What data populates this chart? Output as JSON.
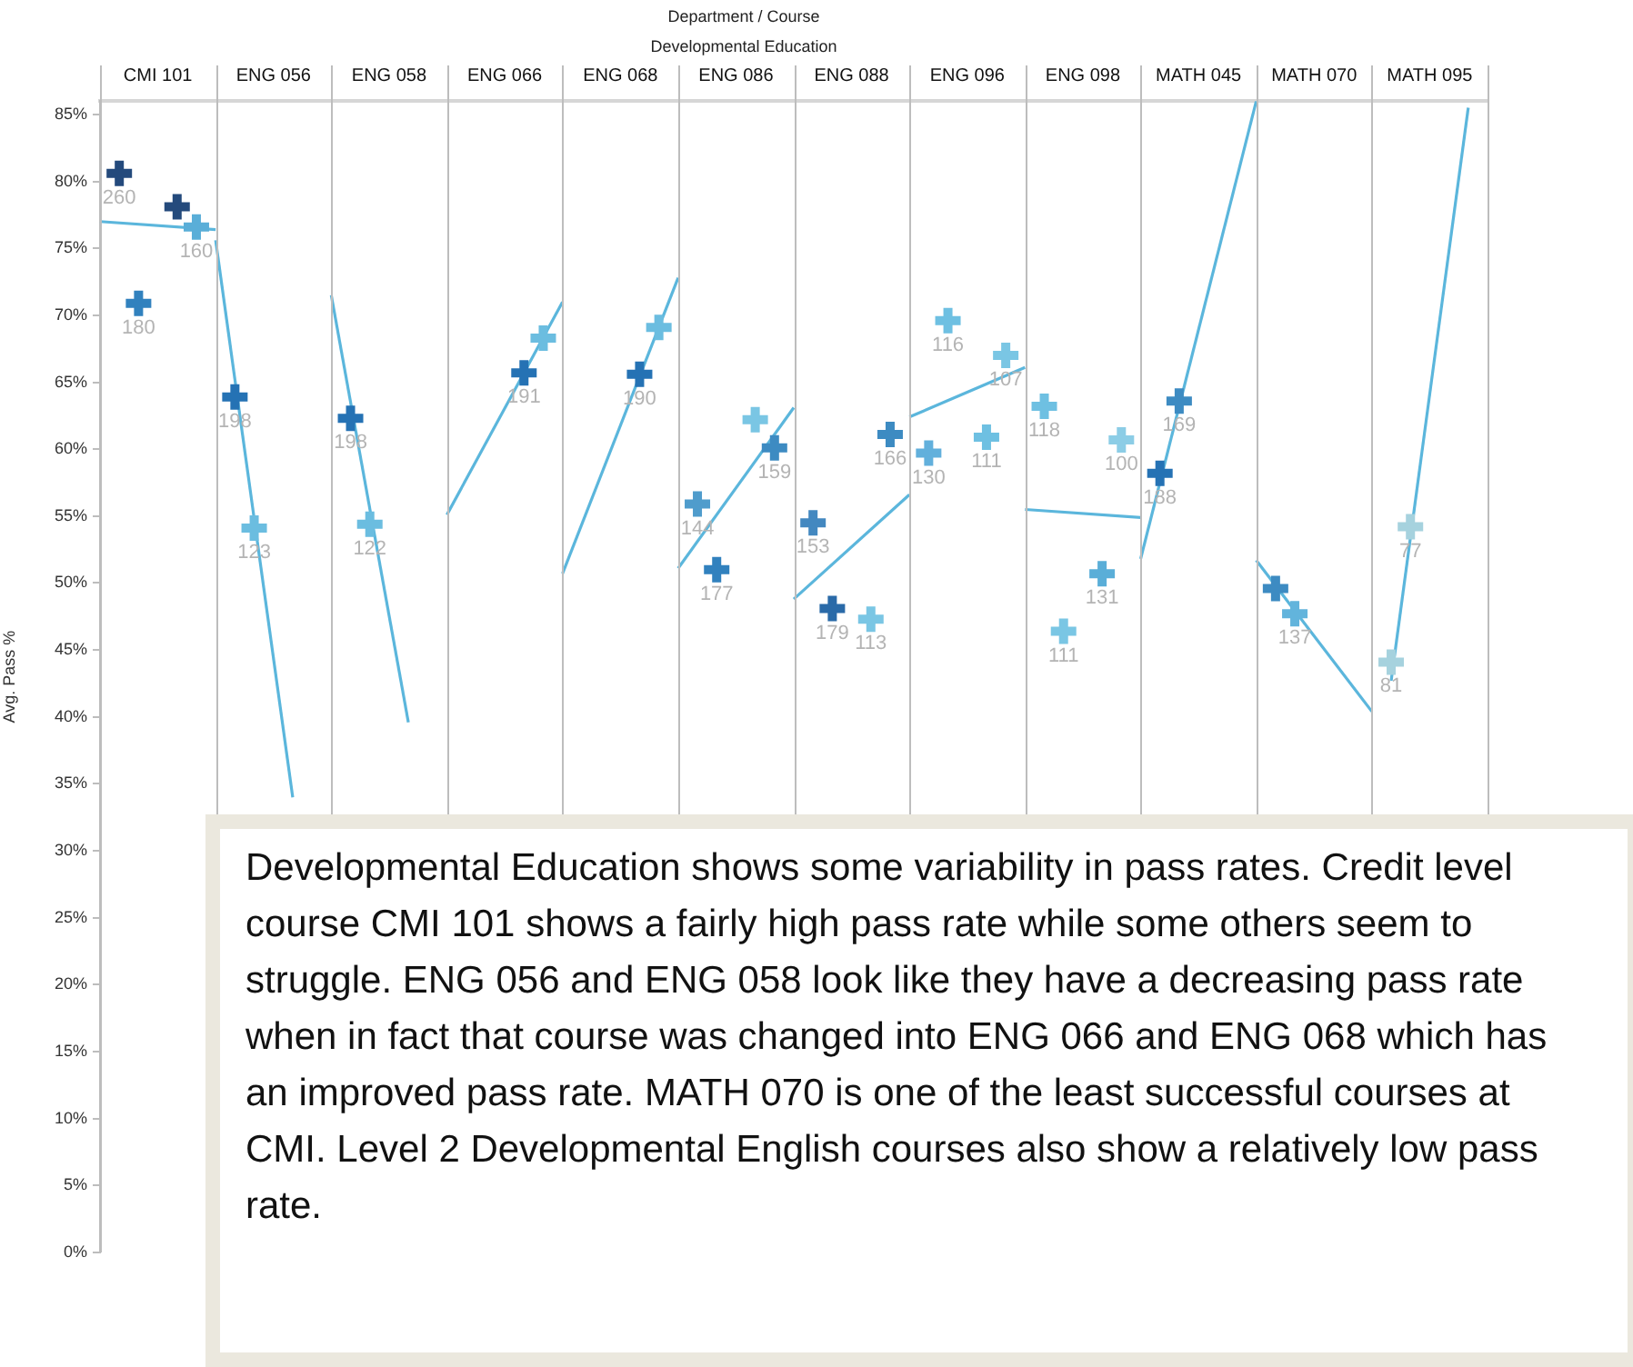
{
  "chart_data": {
    "type": "scatter",
    "title": "Department / Course",
    "subtitle": "Developmental Education",
    "ylabel": "Avg. Pass %",
    "categories": [
      null,
      null,
      null,
      "CMI 101",
      null,
      null,
      null,
      null,
      null,
      "ENG 056",
      null,
      null,
      null,
      null,
      null,
      "ENG 058",
      null,
      null,
      null,
      null,
      null,
      "ENG 066",
      null,
      null,
      null,
      null,
      null,
      "ENG 068",
      null,
      null,
      null,
      null,
      null,
      "ENG 086",
      null,
      null,
      null,
      null,
      null,
      "ENG 088",
      null,
      null,
      null,
      null,
      null,
      "ENG 096",
      null,
      null,
      null,
      null,
      null,
      "ENG 098",
      null,
      null,
      null,
      null,
      null,
      "MATH 045",
      null,
      null,
      null,
      null,
      null,
      "MATH 070",
      null,
      null,
      null,
      null,
      null,
      "MATH 095",
      null,
      null,
      null
    ],
    "ylim": [
      0,
      86
    ],
    "yticks": [
      {
        "value": 0,
        "label": "0%"
      },
      {
        "value": 5,
        "label": "5%"
      },
      {
        "value": 10,
        "label": "10%"
      },
      {
        "value": 15,
        "label": "15%"
      },
      {
        "value": 20,
        "label": "20%"
      },
      {
        "value": 25,
        "label": "25%"
      },
      {
        "value": 30,
        "label": "30%"
      },
      {
        "value": 35,
        "label": "35%"
      },
      {
        "value": 40,
        "label": "40%"
      },
      {
        "value": 45,
        "label": "45%"
      },
      {
        "value": 50,
        "label": "50%"
      },
      {
        "value": 55,
        "label": "55%"
      },
      {
        "value": 60,
        "label": "60%"
      },
      {
        "value": 65,
        "label": "65%"
      },
      {
        "value": 70,
        "label": "70%"
      },
      {
        "value": 75,
        "label": "75%"
      },
      {
        "value": 80,
        "label": "80%"
      },
      {
        "value": 85,
        "label": "85%"
      }
    ],
    "series": [
      {
        "type": "scatter",
        "marker": "cross",
        "values": [
          null,
          80.6,
          70.9,
          null,
          78.1,
          76.6,
          null,
          63.9,
          54.1,
          null,
          null,
          null,
          null,
          62.3,
          54.4,
          null,
          null,
          null,
          null,
          null,
          null,
          null,
          65.7,
          68.3,
          null,
          null,
          null,
          null,
          65.6,
          69.1,
          null,
          55.9,
          51.0,
          null,
          62.2,
          60.1,
          null,
          54.5,
          48.1,
          null,
          47.3,
          61.1,
          null,
          59.7,
          69.6,
          null,
          60.9,
          67.0,
          null,
          63.2,
          46.4,
          null,
          50.7,
          60.7,
          null,
          58.2,
          63.6,
          null,
          null,
          null,
          null,
          49.6,
          47.7,
          null,
          null,
          null,
          null,
          44.1,
          54.2,
          null,
          null,
          null,
          null
        ],
        "colors": [
          null,
          "#244a7c",
          "#3181be",
          null,
          "#244a7c",
          "#5aaed8",
          null,
          "#2572b4",
          "#6bbde0",
          null,
          null,
          null,
          null,
          "#2572b4",
          "#6bbde0",
          null,
          null,
          null,
          null,
          null,
          null,
          null,
          "#2572b4",
          "#6bbde0",
          null,
          null,
          null,
          null,
          "#2572b4",
          "#6bbde0",
          null,
          "#4f9ccc",
          "#3181be",
          null,
          "#7ac6e4",
          "#3d8bc2",
          null,
          "#4388c0",
          "#2a6aa8",
          null,
          "#7ac6e4",
          "#3d8bc2",
          null,
          "#62b0dc",
          "#6ec0e2",
          null,
          "#6ec0e2",
          "#7ac6e4",
          null,
          "#6ec0e2",
          "#7ac6e4",
          null,
          "#5aaed8",
          "#8ccde6",
          null,
          "#2572b4",
          "#3d8bc2",
          null,
          null,
          null,
          null,
          "#3d8bc2",
          "#62b4dc",
          null,
          null,
          null,
          null,
          "#a6d2de",
          "#a6d2de",
          null,
          null,
          null,
          null
        ]
      },
      {
        "type": "line",
        "color": "#5bb6dc",
        "values": [
          77.0,
          null,
          null,
          null,
          null,
          null,
          76.4,
          null,
          null,
          null,
          null,
          null,
          null,
          null,
          null,
          null,
          null,
          null,
          null,
          null,
          null,
          null,
          null,
          null,
          null,
          null,
          null,
          null,
          null,
          null,
          null,
          null,
          null,
          null,
          null,
          null,
          null,
          null,
          null,
          null,
          null,
          null,
          null,
          null,
          null,
          null,
          null,
          null,
          null,
          null,
          null,
          null,
          null,
          null,
          null,
          null,
          null,
          null,
          null,
          null,
          null,
          null,
          null,
          null,
          null,
          null,
          null,
          null,
          null,
          null,
          null,
          null,
          null
        ]
      },
      {
        "type": "line",
        "color": "#5bb6dc",
        "values": [
          null,
          null,
          null,
          null,
          null,
          null,
          75.6,
          null,
          null,
          null,
          34.0,
          null,
          null,
          null,
          null,
          null,
          null,
          null,
          null,
          null,
          null,
          null,
          null,
          null,
          null,
          null,
          null,
          null,
          null,
          null,
          null,
          null,
          null,
          null,
          null,
          null,
          null,
          null,
          null,
          null,
          null,
          null,
          null,
          null,
          null,
          null,
          null,
          null,
          null,
          null,
          null,
          null,
          null,
          null,
          null,
          null,
          null,
          null,
          null,
          null,
          null,
          null,
          null,
          null,
          null,
          null,
          null,
          null,
          null,
          null,
          null,
          null,
          null
        ]
      },
      {
        "type": "line",
        "color": "#5bb6dc",
        "values": [
          null,
          null,
          null,
          null,
          null,
          null,
          null,
          null,
          null,
          null,
          null,
          null,
          71.5,
          null,
          null,
          null,
          39.6,
          null,
          null,
          null,
          null,
          null,
          null,
          null,
          null,
          null,
          null,
          null,
          null,
          null,
          null,
          null,
          null,
          null,
          null,
          null,
          null,
          null,
          null,
          null,
          null,
          null,
          null,
          null,
          null,
          null,
          null,
          null,
          null,
          null,
          null,
          null,
          null,
          null,
          null,
          null,
          null,
          null,
          null,
          null,
          null,
          null,
          null,
          null,
          null,
          null,
          null,
          null,
          null,
          null,
          null,
          null,
          null
        ]
      },
      {
        "type": "line",
        "color": "#5bb6dc",
        "values": [
          null,
          null,
          null,
          null,
          null,
          null,
          null,
          null,
          null,
          null,
          null,
          null,
          null,
          null,
          null,
          null,
          null,
          null,
          55.1,
          null,
          null,
          null,
          null,
          null,
          71.0,
          null,
          null,
          null,
          null,
          null,
          null,
          null,
          null,
          null,
          null,
          null,
          null,
          null,
          null,
          null,
          null,
          null,
          null,
          null,
          null,
          null,
          null,
          null,
          null,
          null,
          null,
          null,
          null,
          null,
          null,
          null,
          null,
          null,
          null,
          null,
          null,
          null,
          null,
          null,
          null,
          null,
          null,
          null,
          null,
          null,
          null,
          null,
          null
        ]
      },
      {
        "type": "line",
        "color": "#5bb6dc",
        "values": [
          null,
          null,
          null,
          null,
          null,
          null,
          null,
          null,
          null,
          null,
          null,
          null,
          null,
          null,
          null,
          null,
          null,
          null,
          null,
          null,
          null,
          null,
          null,
          null,
          50.7,
          null,
          null,
          null,
          null,
          null,
          72.8,
          null,
          null,
          null,
          null,
          null,
          null,
          null,
          null,
          null,
          null,
          null,
          null,
          null,
          null,
          null,
          null,
          null,
          null,
          null,
          null,
          null,
          null,
          null,
          null,
          null,
          null,
          null,
          null,
          null,
          null,
          null,
          null,
          null,
          null,
          null,
          null,
          null,
          null,
          null,
          null,
          null,
          null
        ]
      },
      {
        "type": "line",
        "color": "#5bb6dc",
        "values": [
          null,
          null,
          null,
          null,
          null,
          null,
          null,
          null,
          null,
          null,
          null,
          null,
          null,
          null,
          null,
          null,
          null,
          null,
          null,
          null,
          null,
          null,
          null,
          null,
          null,
          null,
          null,
          null,
          null,
          null,
          51.1,
          null,
          null,
          null,
          null,
          null,
          63.1,
          null,
          null,
          null,
          null,
          null,
          null,
          null,
          null,
          null,
          null,
          null,
          null,
          null,
          null,
          null,
          null,
          null,
          null,
          null,
          null,
          null,
          null,
          null,
          null,
          null,
          null,
          null,
          null,
          null,
          null,
          null,
          null,
          null,
          null,
          null,
          null
        ]
      },
      {
        "type": "line",
        "color": "#5bb6dc",
        "values": [
          null,
          null,
          null,
          null,
          null,
          null,
          null,
          null,
          null,
          null,
          null,
          null,
          null,
          null,
          null,
          null,
          null,
          null,
          null,
          null,
          null,
          null,
          null,
          null,
          null,
          null,
          null,
          null,
          null,
          null,
          null,
          null,
          null,
          null,
          null,
          null,
          48.8,
          null,
          null,
          null,
          null,
          null,
          56.6,
          null,
          null,
          null,
          null,
          null,
          null,
          null,
          null,
          null,
          null,
          null,
          null,
          null,
          null,
          null,
          null,
          null,
          null,
          null,
          null,
          null,
          null,
          null,
          null,
          null,
          null,
          null,
          null,
          null,
          null
        ]
      },
      {
        "type": "line",
        "color": "#5bb6dc",
        "values": [
          null,
          null,
          null,
          null,
          null,
          null,
          null,
          null,
          null,
          null,
          null,
          null,
          null,
          null,
          null,
          null,
          null,
          null,
          null,
          null,
          null,
          null,
          null,
          null,
          null,
          null,
          null,
          null,
          null,
          null,
          null,
          null,
          null,
          null,
          null,
          null,
          null,
          null,
          null,
          null,
          null,
          null,
          62.4,
          null,
          null,
          null,
          null,
          null,
          66.1,
          null,
          null,
          null,
          null,
          null,
          null,
          null,
          null,
          null,
          null,
          null,
          null,
          null,
          null,
          null,
          null,
          null,
          null,
          null,
          null,
          null,
          null,
          null,
          null
        ]
      },
      {
        "type": "line",
        "color": "#5bb6dc",
        "values": [
          null,
          null,
          null,
          null,
          null,
          null,
          null,
          null,
          null,
          null,
          null,
          null,
          null,
          null,
          null,
          null,
          null,
          null,
          null,
          null,
          null,
          null,
          null,
          null,
          null,
          null,
          null,
          null,
          null,
          null,
          null,
          null,
          null,
          null,
          null,
          null,
          null,
          null,
          null,
          null,
          null,
          null,
          null,
          null,
          null,
          null,
          null,
          null,
          55.5,
          null,
          null,
          null,
          null,
          null,
          54.9,
          null,
          null,
          null,
          null,
          null,
          null,
          null,
          null,
          null,
          null,
          null,
          null,
          null,
          null,
          null,
          null,
          null,
          null
        ]
      },
      {
        "type": "line",
        "color": "#5bb6dc",
        "values": [
          null,
          null,
          null,
          null,
          null,
          null,
          null,
          null,
          null,
          null,
          null,
          null,
          null,
          null,
          null,
          null,
          null,
          null,
          null,
          null,
          null,
          null,
          null,
          null,
          null,
          null,
          null,
          null,
          null,
          null,
          null,
          null,
          null,
          null,
          null,
          null,
          null,
          null,
          null,
          null,
          null,
          null,
          null,
          null,
          null,
          null,
          null,
          null,
          null,
          null,
          null,
          null,
          null,
          null,
          51.8,
          null,
          null,
          null,
          null,
          null,
          86.0,
          null,
          null,
          null,
          null,
          null,
          null,
          null,
          null,
          null,
          null,
          null,
          null
        ]
      },
      {
        "type": "line",
        "color": "#5bb6dc",
        "values": [
          null,
          null,
          null,
          null,
          null,
          null,
          null,
          null,
          null,
          null,
          null,
          null,
          null,
          null,
          null,
          null,
          null,
          null,
          null,
          null,
          null,
          null,
          null,
          null,
          null,
          null,
          null,
          null,
          null,
          null,
          null,
          null,
          null,
          null,
          null,
          null,
          null,
          null,
          null,
          null,
          null,
          null,
          null,
          null,
          null,
          null,
          null,
          null,
          null,
          null,
          null,
          null,
          null,
          null,
          null,
          null,
          null,
          null,
          null,
          null,
          51.7,
          null,
          null,
          null,
          null,
          null,
          40.4,
          null,
          null,
          null,
          null,
          null,
          null
        ]
      },
      {
        "type": "line",
        "color": "#5bb6dc",
        "values": [
          null,
          null,
          null,
          null,
          null,
          null,
          null,
          null,
          null,
          null,
          null,
          null,
          null,
          null,
          null,
          null,
          null,
          null,
          null,
          null,
          null,
          null,
          null,
          null,
          null,
          null,
          null,
          null,
          null,
          null,
          null,
          null,
          null,
          null,
          null,
          null,
          null,
          null,
          null,
          null,
          null,
          null,
          null,
          null,
          null,
          null,
          null,
          null,
          null,
          null,
          null,
          null,
          null,
          null,
          null,
          null,
          null,
          null,
          null,
          null,
          null,
          null,
          null,
          null,
          null,
          null,
          null,
          42.7,
          null,
          null,
          null,
          85.5,
          null
        ]
      }
    ],
    "annotations": [
      "Developmental Education shows some variability in pass rates. Credit level course CMI 101 shows a fairly high pass rate while some others seem to struggle. ENG 056 and ENG 058 look like they have a decreasing pass rate when in fact that course was changed into ENG 066 and ENG 068 which has an improved pass rate. MATH 070 is one of the least successful courses at CMI. Level 2 Developmental English courses also show a relatively low pass rate.",
      {
        "text": "260",
        "y": 80.6
      },
      {
        "text": "180",
        "y": 70.9
      },
      {
        "text": "160",
        "y": 76.6
      },
      {
        "text": "198",
        "y": 63.9
      },
      {
        "text": "123",
        "y": 54.1
      },
      {
        "text": "198",
        "y": 62.3
      },
      {
        "text": "122",
        "y": 54.4
      },
      {
        "text": "191",
        "y": 65.7
      },
      {
        "text": "190",
        "y": 65.6
      },
      {
        "text": "144",
        "y": 55.9
      },
      {
        "text": "177",
        "y": 51.0
      },
      {
        "text": "159",
        "y": 60.1
      },
      {
        "text": "153",
        "y": 54.5
      },
      {
        "text": "179",
        "y": 48.1
      },
      {
        "text": "113",
        "y": 47.3
      },
      {
        "text": "166",
        "y": 61.1
      },
      {
        "text": "130",
        "y": 59.7
      },
      {
        "text": "116",
        "y": 69.6
      },
      {
        "text": "111",
        "y": 60.9
      },
      {
        "text": "107",
        "y": 67.0
      },
      {
        "text": "118",
        "y": 63.2
      },
      {
        "text": "111",
        "y": 46.4
      },
      {
        "text": "131",
        "y": 50.7
      },
      {
        "text": "100",
        "y": 60.7
      },
      {
        "text": "188",
        "y": 58.2
      },
      {
        "text": "169",
        "y": 63.6
      },
      {
        "text": "137",
        "y": 47.7
      },
      {
        "text": "81",
        "y": 44.1
      },
      {
        "text": "77",
        "y": 54.2
      }
    ]
  }
}
